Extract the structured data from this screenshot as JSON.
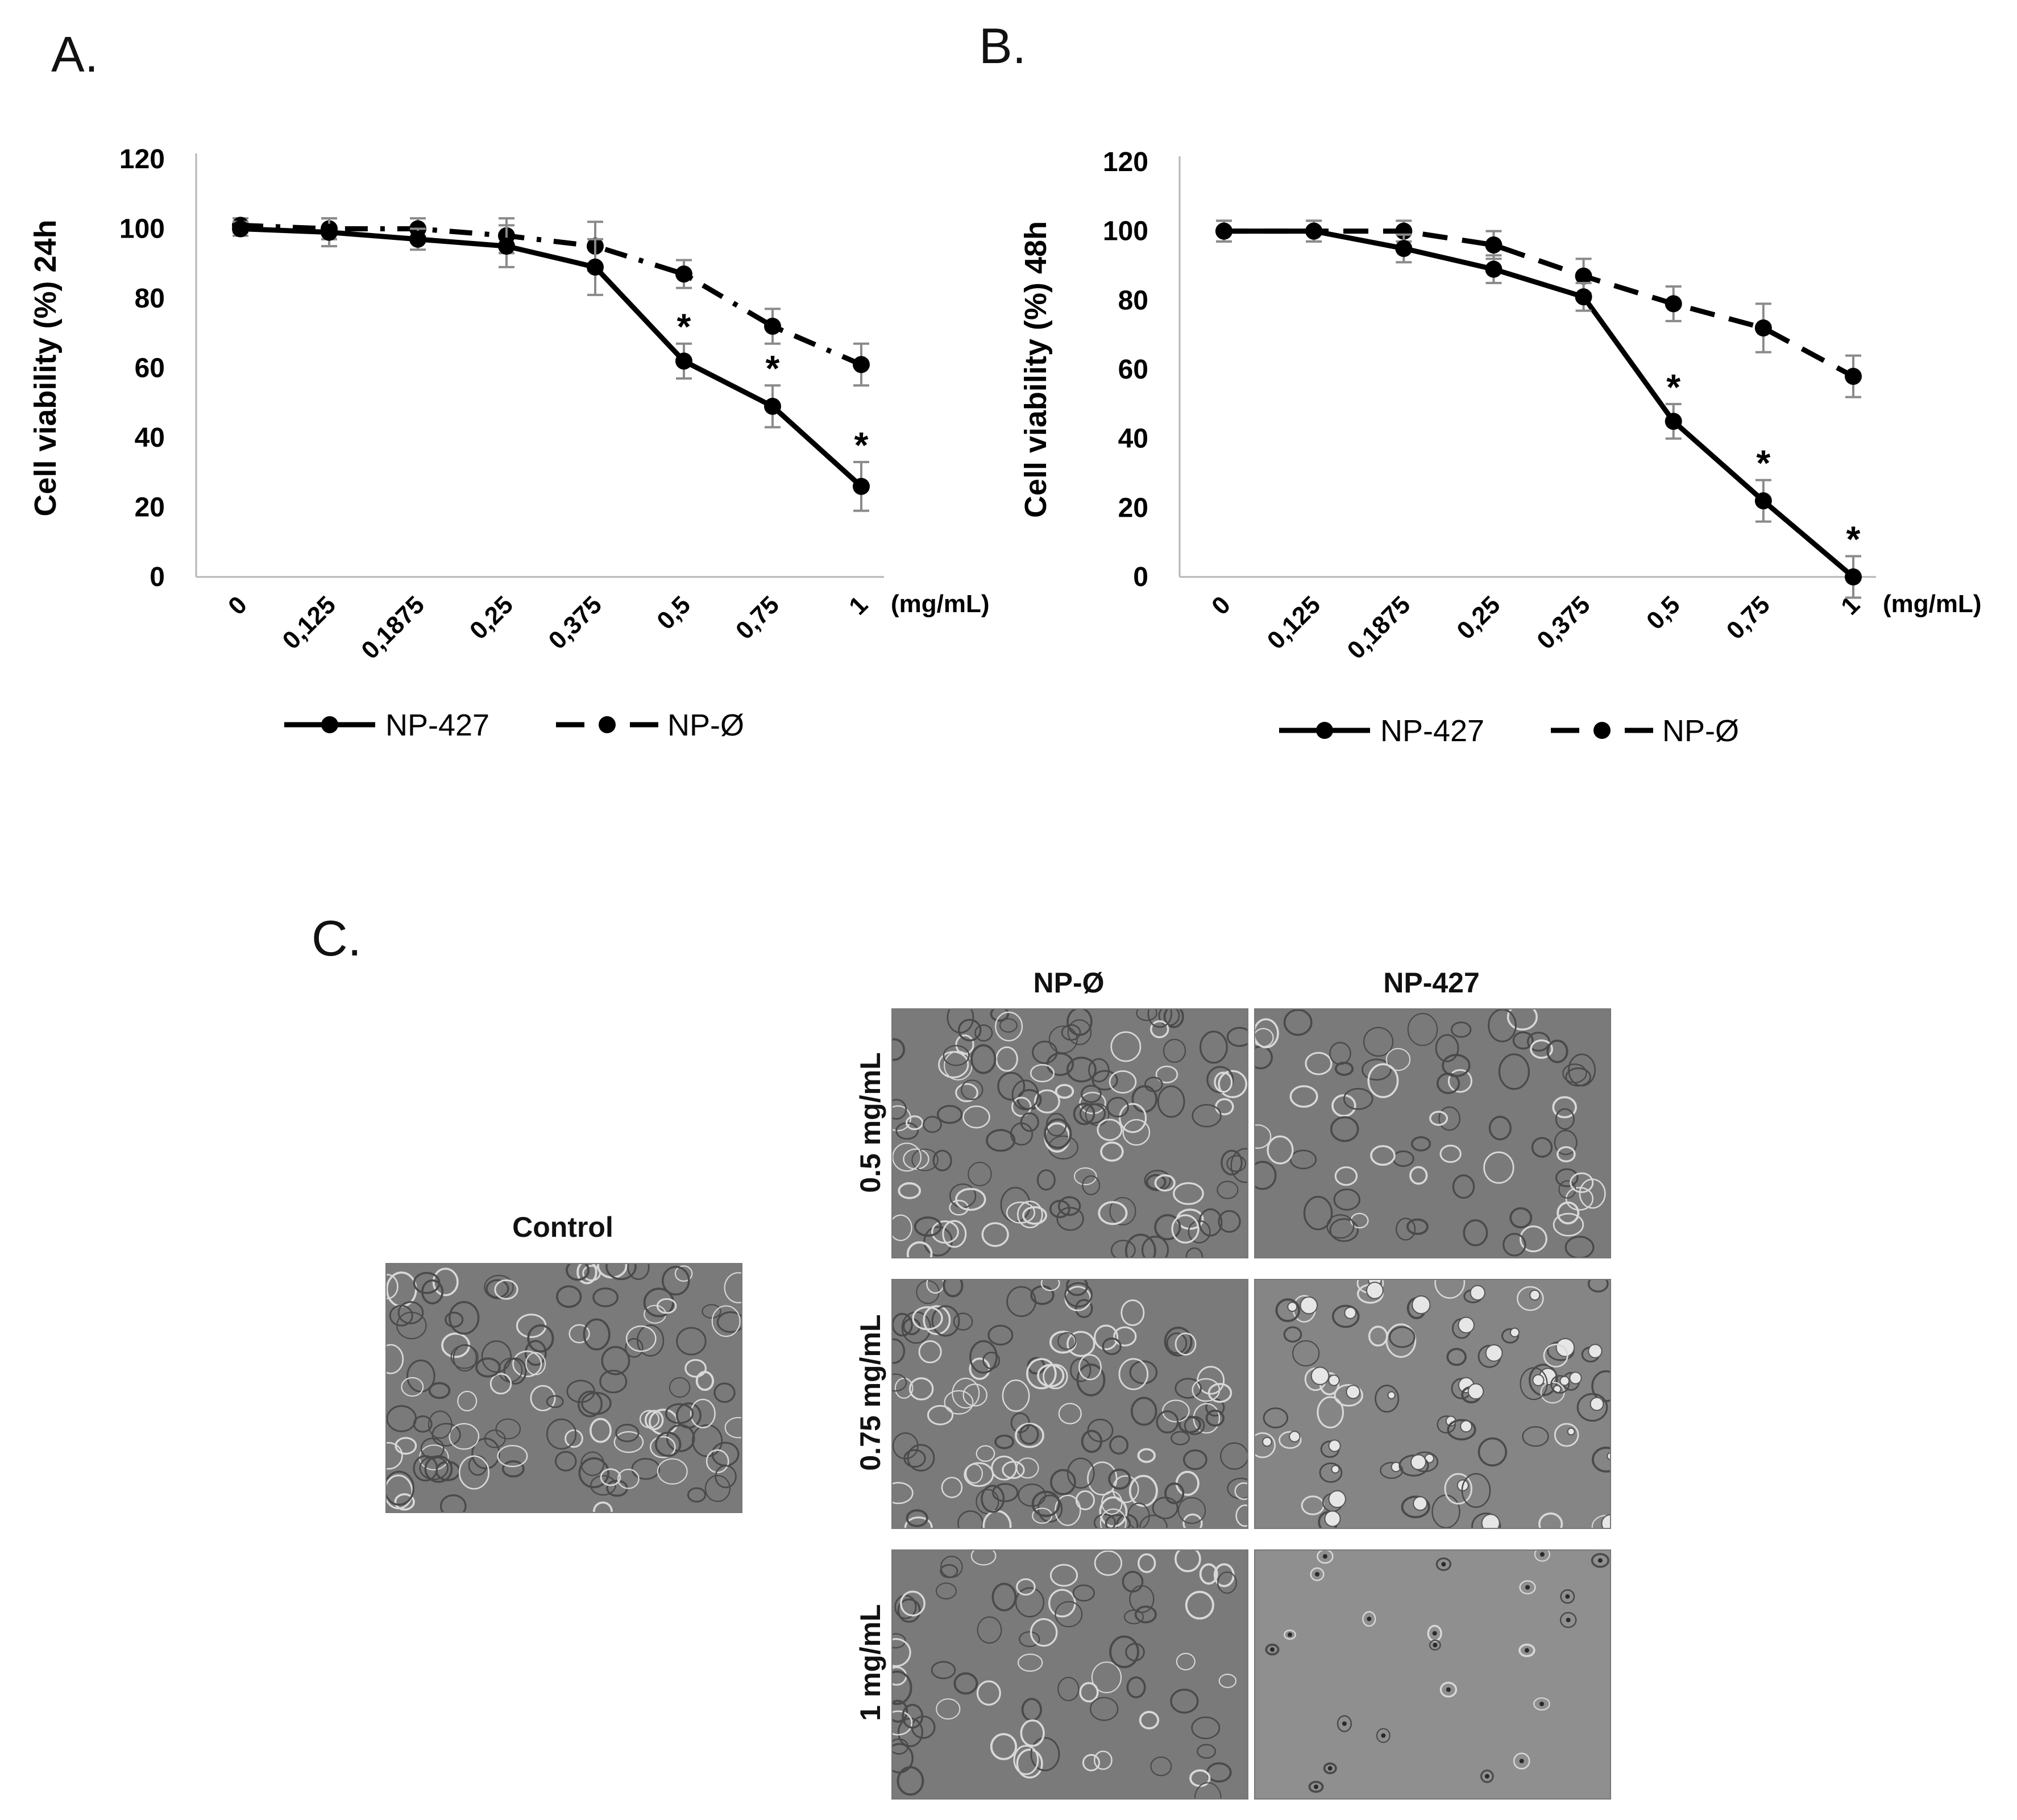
{
  "panels": {
    "a": "A.",
    "b": "B.",
    "c": "C."
  },
  "chart_data": [
    {
      "type": "line",
      "title": "",
      "ylabel": "Cell viability (%) 24h",
      "xunit": "(mg/mL)",
      "categories": [
        "0",
        "0,125",
        "0,1875",
        "0,25",
        "0,375",
        "0,5",
        "0,75",
        "1"
      ],
      "ylim": [
        0,
        120
      ],
      "yticks": [
        0,
        20,
        40,
        60,
        80,
        100,
        120
      ],
      "legend": "bottom",
      "series": [
        {
          "name": "NP-427",
          "style": "solid",
          "values": [
            100,
            99,
            97,
            95,
            89,
            62,
            49,
            26
          ],
          "errors": [
            2,
            4,
            3,
            6,
            8,
            5,
            6,
            7
          ],
          "significant": [
            false,
            false,
            false,
            false,
            false,
            true,
            true,
            true
          ]
        },
        {
          "name": "NP-Ø",
          "style": "dashdot",
          "values": [
            101,
            100,
            100,
            98,
            95,
            87,
            72,
            61
          ],
          "errors": [
            2,
            3,
            3,
            5,
            7,
            4,
            5,
            6
          ]
        }
      ],
      "significance_mark": "*"
    },
    {
      "type": "line",
      "title": "",
      "ylabel": "Cell viability (%) 48h",
      "xunit": "(mg/mL)",
      "categories": [
        "0",
        "0,125",
        "0,1875",
        "0,25",
        "0,375",
        "0,5",
        "0,75",
        "1"
      ],
      "ylim": [
        0,
        120
      ],
      "yticks": [
        0,
        20,
        40,
        60,
        80,
        100,
        120
      ],
      "legend": "bottom",
      "series": [
        {
          "name": "NP-427",
          "style": "solid",
          "values": [
            100,
            100,
            95,
            89,
            81,
            45,
            22,
            0
          ],
          "errors": [
            3,
            3,
            4,
            4,
            4,
            5,
            6,
            6
          ],
          "significant": [
            false,
            false,
            false,
            false,
            false,
            true,
            true,
            true
          ]
        },
        {
          "name": "NP-Ø",
          "style": "dashed",
          "values": [
            100,
            100,
            100,
            96,
            87,
            79,
            72,
            58
          ],
          "errors": [
            3,
            3,
            3,
            4,
            5,
            5,
            7,
            6
          ]
        }
      ],
      "significance_mark": "*"
    }
  ],
  "micrographs": {
    "control_label": "Control",
    "columns": [
      "NP-Ø",
      "NP-427"
    ],
    "rows": [
      "0.5 mg/mL",
      "0.75 mg/mL",
      "1 mg/mL"
    ]
  }
}
